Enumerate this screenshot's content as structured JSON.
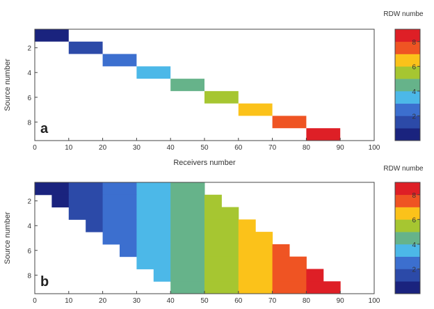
{
  "chart_data": [
    {
      "type": "heatmap",
      "panel_label": "a",
      "xlabel": "Receivers number",
      "ylabel": "Source number",
      "xlim": [
        0,
        100
      ],
      "ylim": [
        9,
        1
      ],
      "xticks": [
        0,
        10,
        20,
        30,
        40,
        50,
        60,
        70,
        80,
        90,
        100
      ],
      "yticks": [
        2,
        4,
        6,
        8
      ],
      "colorbar_label": "RDW numbe",
      "colorbar_ticks": [
        2,
        4,
        6,
        8
      ],
      "colorbar_range": [
        0,
        9
      ],
      "grid": false,
      "cells": [
        {
          "source": 1,
          "receiver_from": 0,
          "receiver_to": 10,
          "rdw": 0
        },
        {
          "source": 2,
          "receiver_from": 10,
          "receiver_to": 20,
          "rdw": 1
        },
        {
          "source": 3,
          "receiver_from": 20,
          "receiver_to": 30,
          "rdw": 2
        },
        {
          "source": 4,
          "receiver_from": 30,
          "receiver_to": 40,
          "rdw": 3
        },
        {
          "source": 5,
          "receiver_from": 40,
          "receiver_to": 50,
          "rdw": 4
        },
        {
          "source": 6,
          "receiver_from": 50,
          "receiver_to": 60,
          "rdw": 5
        },
        {
          "source": 7,
          "receiver_from": 60,
          "receiver_to": 70,
          "rdw": 6
        },
        {
          "source": 8,
          "receiver_from": 70,
          "receiver_to": 80,
          "rdw": 7
        },
        {
          "source": 9,
          "receiver_from": 80,
          "receiver_to": 90,
          "rdw": 8
        }
      ]
    },
    {
      "type": "heatmap",
      "panel_label": "b",
      "xlabel": "",
      "ylabel": "Source number",
      "xlim": [
        0,
        100
      ],
      "ylim": [
        9,
        1
      ],
      "xticks": [
        0,
        10,
        20,
        30,
        40,
        50,
        60,
        70,
        80,
        90,
        100
      ],
      "yticks": [
        2,
        4,
        6,
        8
      ],
      "colorbar_label": "RDW numbe",
      "colorbar_ticks": [
        2,
        4,
        6,
        8
      ],
      "colorbar_range": [
        0,
        9
      ],
      "grid": false,
      "bands": [
        {
          "receiver_from": 0,
          "receiver_to": 10,
          "rdw": 0
        },
        {
          "receiver_from": 10,
          "receiver_to": 20,
          "rdw": 1
        },
        {
          "receiver_from": 20,
          "receiver_to": 30,
          "rdw": 2
        },
        {
          "receiver_from": 30,
          "receiver_to": 40,
          "rdw": 3
        },
        {
          "receiver_from": 40,
          "receiver_to": 50,
          "rdw": 4
        },
        {
          "receiver_from": 50,
          "receiver_to": 60,
          "rdw": 5
        },
        {
          "receiver_from": 60,
          "receiver_to": 70,
          "rdw": 6
        },
        {
          "receiver_from": 70,
          "receiver_to": 80,
          "rdw": 7
        },
        {
          "receiver_from": 80,
          "receiver_to": 90,
          "rdw": 8
        }
      ],
      "coverage": [
        {
          "source": 1,
          "receiver_from": 0,
          "receiver_to": 50
        },
        {
          "source": 2,
          "receiver_from": 5,
          "receiver_to": 55
        },
        {
          "source": 3,
          "receiver_from": 10,
          "receiver_to": 60
        },
        {
          "source": 4,
          "receiver_from": 15,
          "receiver_to": 65
        },
        {
          "source": 5,
          "receiver_from": 20,
          "receiver_to": 70
        },
        {
          "source": 6,
          "receiver_from": 25,
          "receiver_to": 75
        },
        {
          "source": 7,
          "receiver_from": 30,
          "receiver_to": 80
        },
        {
          "source": 8,
          "receiver_from": 35,
          "receiver_to": 85
        },
        {
          "source": 9,
          "receiver_from": 40,
          "receiver_to": 90
        }
      ]
    }
  ],
  "colormap": [
    "#1a237e",
    "#2c4aa8",
    "#3c6fcf",
    "#4cb8e8",
    "#66b38a",
    "#a6c631",
    "#fbc21a",
    "#ef5423",
    "#de1f26"
  ]
}
